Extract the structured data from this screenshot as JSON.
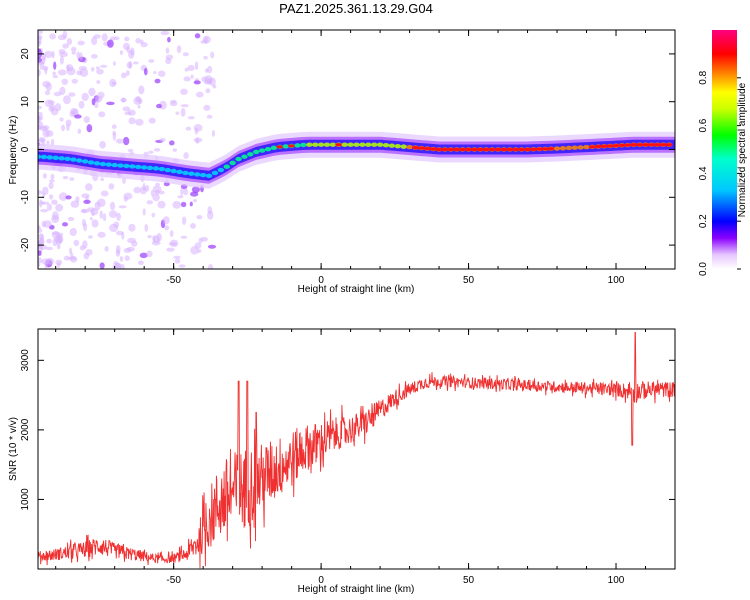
{
  "chart_data": [
    {
      "type": "heatmap",
      "title": "PAZ1.2025.361.13.29.G04",
      "xlabel": "Height of straight line (km)",
      "ylabel": "Frequency (Hz)",
      "xlim": [
        -96,
        120
      ],
      "ylim": [
        -25,
        25
      ],
      "xticks": [
        -50,
        0,
        50,
        100
      ],
      "yticks": [
        -20,
        -10,
        0,
        10,
        20
      ],
      "xtick_labels": [
        "-50",
        "0",
        "50",
        "100"
      ],
      "ytick_labels": [
        "-20",
        "-10",
        "0",
        "10",
        "20"
      ],
      "ridge": {
        "x": [
          -95,
          -85,
          -75,
          -65,
          -55,
          -45,
          -38,
          -33,
          -28,
          -22,
          -15,
          -5,
          0,
          10,
          20,
          30,
          40,
          50,
          60,
          70,
          80,
          90,
          100,
          106,
          110,
          120
        ],
        "freq": [
          -1.5,
          -2,
          -3,
          -3.5,
          -4,
          -5,
          -5.5,
          -4,
          -2,
          -0.5,
          0.5,
          1,
          1,
          1,
          1,
          0.5,
          0,
          0,
          0,
          0,
          0.2,
          0.5,
          0.8,
          1,
          1,
          1
        ]
      },
      "colorbar": {
        "label": "Normalized spectral amplitude",
        "range": [
          0,
          1
        ],
        "ticks": [
          0.0,
          0.2,
          0.4,
          0.6,
          0.8
        ],
        "tick_labels": [
          "0.0",
          "0.2",
          "0.4",
          "0.6",
          "0.8"
        ]
      }
    },
    {
      "type": "line",
      "title": "",
      "xlabel": "Height of straight line (km)",
      "ylabel": "SNR (10 * v/v)",
      "xlim": [
        -96,
        120
      ],
      "ylim": [
        0,
        3450
      ],
      "xticks": [
        -50,
        0,
        50,
        100
      ],
      "yticks": [
        1000,
        2000,
        3000
      ],
      "xtick_labels": [
        "-50",
        "0",
        "50",
        "100"
      ],
      "ytick_labels": [
        "1000",
        "2000",
        "3000"
      ],
      "line_color": "#f03030",
      "series": [
        {
          "name": "SNR",
          "x": [
            -96,
            -90,
            -80,
            -75,
            -70,
            -60,
            -55,
            -50,
            -45,
            -42,
            -38,
            -34,
            -30,
            -25,
            -20,
            -15,
            -10,
            -5,
            0,
            5,
            10,
            15,
            20,
            25,
            30,
            35,
            40,
            50,
            60,
            70,
            80,
            90,
            100,
            104,
            106,
            108,
            112,
            120
          ],
          "mean": [
            180,
            210,
            280,
            340,
            260,
            180,
            140,
            150,
            230,
            380,
            720,
            980,
            1080,
            1180,
            1300,
            1450,
            1580,
            1750,
            1820,
            1940,
            2000,
            2100,
            2280,
            2460,
            2580,
            2680,
            2700,
            2680,
            2660,
            2640,
            2620,
            2600,
            2580,
            2560,
            2540,
            2560,
            2580,
            2580
          ],
          "spread": [
            90,
            110,
            150,
            180,
            140,
            100,
            80,
            80,
            140,
            280,
            560,
            700,
            760,
            740,
            640,
            560,
            520,
            420,
            380,
            300,
            260,
            240,
            200,
            150,
            120,
            110,
            100,
            100,
            100,
            100,
            100,
            110,
            120,
            150,
            220,
            180,
            150,
            140
          ],
          "events": [
            {
              "x": -28,
              "value": 2700
            },
            {
              "x": -25,
              "value": 2700
            },
            {
              "x": -22,
              "value": 2250
            },
            {
              "x": 105.5,
              "value": 1780
            },
            {
              "x": 106.5,
              "value": 3400
            }
          ]
        }
      ]
    }
  ]
}
